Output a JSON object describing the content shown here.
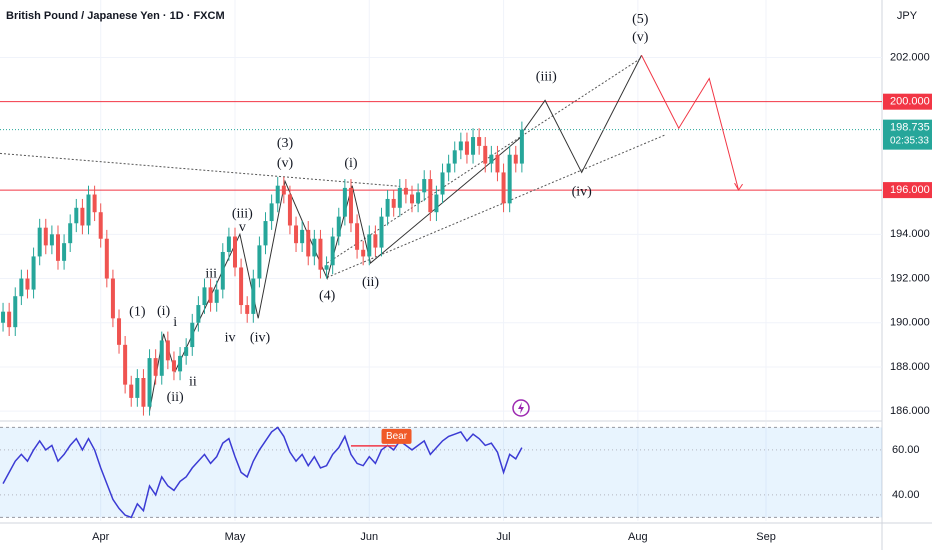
{
  "chart_data": {
    "type": "candlestick",
    "title": "British Pound / Japanese Yen · 1D · FXCM",
    "currency": "JPY",
    "xlim": [
      -0.5,
      144
    ],
    "xticks": [
      {
        "value": 16,
        "label": "Apr"
      },
      {
        "value": 38,
        "label": "May"
      },
      {
        "value": 60,
        "label": "Jun"
      },
      {
        "value": 82,
        "label": "Jul"
      },
      {
        "value": 104,
        "label": "Aug"
      },
      {
        "value": 125,
        "label": "Sep"
      }
    ],
    "ylim": [
      185.6,
      204.6
    ],
    "yticks": [
      {
        "value": 186,
        "label": "186.000"
      },
      {
        "value": 188,
        "label": "188.000"
      },
      {
        "value": 190,
        "label": "190.000"
      },
      {
        "value": 192,
        "label": "192.000"
      },
      {
        "value": 194,
        "label": "194.000"
      },
      {
        "value": 202,
        "label": "202.000"
      }
    ],
    "grid": true,
    "color_up": "#26a69a",
    "color_down": "#ef5350",
    "open": [
      190.0,
      190.5,
      189.8,
      191.2,
      192.0,
      191.5,
      193.0,
      194.3,
      193.5,
      194.0,
      192.8,
      193.6,
      194.5,
      195.2,
      194.4,
      195.8,
      195.0,
      193.8,
      192.0,
      190.2,
      189.0,
      187.2,
      186.6,
      187.5,
      186.2,
      188.4,
      187.6,
      189.2,
      188.3,
      187.8,
      188.5,
      188.9,
      190.0,
      190.8,
      191.6,
      190.9,
      191.5,
      193.2,
      193.9,
      192.5,
      190.8,
      190.4,
      192.0,
      193.5,
      194.6,
      195.4,
      196.2,
      195.8,
      194.4,
      193.6,
      194.2,
      193.0,
      193.8,
      192.4,
      192.6,
      193.9,
      194.8,
      196.1,
      194.5,
      193.3,
      193.0,
      194.0,
      193.4,
      194.8,
      195.6,
      195.2,
      196.1,
      195.8,
      195.4,
      195.9,
      196.5,
      195.0,
      195.8,
      196.8,
      197.2,
      197.8,
      198.2,
      197.6,
      198.4,
      198.0,
      197.2,
      197.6,
      196.8,
      195.4,
      197.6,
      197.2
    ],
    "high": [
      190.9,
      190.9,
      191.6,
      192.4,
      192.4,
      193.4,
      194.7,
      194.7,
      194.4,
      194.4,
      194.0,
      194.9,
      195.6,
      195.6,
      196.2,
      196.2,
      195.4,
      194.2,
      192.4,
      190.6,
      189.4,
      187.6,
      187.9,
      187.9,
      188.8,
      188.8,
      189.6,
      189.6,
      188.7,
      188.9,
      189.3,
      190.4,
      191.2,
      192.0,
      192.0,
      191.9,
      193.6,
      194.3,
      194.3,
      192.9,
      191.2,
      192.4,
      193.9,
      195.0,
      195.8,
      196.6,
      196.6,
      196.2,
      194.8,
      194.6,
      194.6,
      194.2,
      194.2,
      193.0,
      194.3,
      195.2,
      196.5,
      196.5,
      194.9,
      193.7,
      194.4,
      194.4,
      195.2,
      196.0,
      196.0,
      196.5,
      196.5,
      196.2,
      196.3,
      196.9,
      196.9,
      196.2,
      197.2,
      197.6,
      198.2,
      198.6,
      198.6,
      198.8,
      198.8,
      198.4,
      198.0,
      198.0,
      197.2,
      198.0,
      198.0,
      199.1
    ],
    "low": [
      189.6,
      189.4,
      189.4,
      190.8,
      191.1,
      191.1,
      192.6,
      193.1,
      193.1,
      192.4,
      192.4,
      193.2,
      194.1,
      194.0,
      194.0,
      194.6,
      193.4,
      191.6,
      189.8,
      188.6,
      186.8,
      186.2,
      186.2,
      185.8,
      185.8,
      187.2,
      187.2,
      187.9,
      187.4,
      187.4,
      188.1,
      188.5,
      189.6,
      190.4,
      190.5,
      190.5,
      191.1,
      192.8,
      192.1,
      190.4,
      190.0,
      190.0,
      191.6,
      193.1,
      194.2,
      195.0,
      195.4,
      194.0,
      193.2,
      193.2,
      192.6,
      192.6,
      192.0,
      192.0,
      192.2,
      193.5,
      194.4,
      194.1,
      192.9,
      192.6,
      192.6,
      193.0,
      193.0,
      194.4,
      194.8,
      194.8,
      195.4,
      195.0,
      195.0,
      195.5,
      194.6,
      194.6,
      195.4,
      196.4,
      196.8,
      197.4,
      197.2,
      197.2,
      197.6,
      196.8,
      196.8,
      196.4,
      195.0,
      195.0,
      196.8,
      196.8
    ],
    "close": [
      190.5,
      189.8,
      191.2,
      192.0,
      191.5,
      193.0,
      194.3,
      193.5,
      194.0,
      192.8,
      193.6,
      194.5,
      195.2,
      194.4,
      195.8,
      195.0,
      193.8,
      192.0,
      190.2,
      189.0,
      187.2,
      186.6,
      187.5,
      186.2,
      188.4,
      187.6,
      189.2,
      188.3,
      187.8,
      188.5,
      188.9,
      190.0,
      190.8,
      191.6,
      190.9,
      191.5,
      193.2,
      193.9,
      192.5,
      190.8,
      190.4,
      192.0,
      193.5,
      194.6,
      195.4,
      196.2,
      195.8,
      194.4,
      193.6,
      194.2,
      193.0,
      193.8,
      192.4,
      192.6,
      193.9,
      194.8,
      196.1,
      194.5,
      193.3,
      193.0,
      194.0,
      193.4,
      194.8,
      195.6,
      195.2,
      196.1,
      195.8,
      195.4,
      195.9,
      196.5,
      195.0,
      195.8,
      196.8,
      197.2,
      197.8,
      198.2,
      197.6,
      198.4,
      198.0,
      197.2,
      197.6,
      196.8,
      195.4,
      197.6,
      197.2,
      198.735
    ],
    "last": {
      "value": 198.735,
      "label": "198.735",
      "countdown": "02:35:33",
      "color": "#26a69a"
    },
    "hlines": [
      {
        "value": 200,
        "label": "200.000",
        "color": "#f23645"
      },
      {
        "value": 196,
        "label": "196.000",
        "color": "#f23645"
      }
    ],
    "annotations": {
      "labels": [
        {
          "text": "(1)",
          "x": 22,
          "y": 190.47
        },
        {
          "text": "(i)",
          "x": 26.3,
          "y": 190.5
        },
        {
          "text": "i",
          "x": 28.2,
          "y": 190.0
        },
        {
          "text": "(ii)",
          "x": 28.2,
          "y": 186.6
        },
        {
          "text": "ii",
          "x": 31.1,
          "y": 187.3
        },
        {
          "text": "iii",
          "x": 34.1,
          "y": 192.2
        },
        {
          "text": "iv",
          "x": 37.2,
          "y": 189.3
        },
        {
          "text": "(iii)",
          "x": 39.2,
          "y": 194.9
        },
        {
          "text": "v",
          "x": 39.2,
          "y": 194.3
        },
        {
          "text": "(iv)",
          "x": 42.1,
          "y": 189.3
        },
        {
          "text": "(3)",
          "x": 46.2,
          "y": 198.1
        },
        {
          "text": "(v)",
          "x": 46.2,
          "y": 197.2
        },
        {
          "text": "(4)",
          "x": 53.1,
          "y": 191.2
        },
        {
          "text": "(i)",
          "x": 57,
          "y": 197.2
        },
        {
          "text": "(ii)",
          "x": 60.2,
          "y": 191.8
        },
        {
          "text": "(iii)",
          "x": 89,
          "y": 201.1
        },
        {
          "text": "(iv)",
          "x": 94.8,
          "y": 195.9
        },
        {
          "text": "(5)",
          "x": 104.4,
          "y": 203.7
        },
        {
          "text": "(v)",
          "x": 104.4,
          "y": 202.9
        }
      ],
      "lines": [
        {
          "color": "#555555",
          "dash": true,
          "points": [
            [
              -0.5,
              197.66
            ],
            [
              65,
              196.17
            ]
          ]
        },
        {
          "color": "#555555",
          "dash": true,
          "points": [
            [
              53.1,
              192.7
            ],
            [
              104.7,
              202.0
            ]
          ]
        },
        {
          "color": "#555555",
          "dash": true,
          "points": [
            [
              53.1,
              192.05
            ],
            [
              108.5,
              198.5
            ]
          ]
        },
        {
          "color": "#333333",
          "dash": false,
          "points": [
            [
              24,
              186.0
            ],
            [
              26.3,
              189.5
            ],
            [
              28.2,
              187.8
            ],
            [
              38.8,
              194.0
            ],
            [
              41.8,
              190.2
            ],
            [
              46.2,
              196.4
            ],
            [
              53.1,
              192.0
            ],
            [
              57.2,
              196.2
            ],
            [
              60.2,
              192.7
            ],
            [
              85.3,
              198.5
            ]
          ]
        },
        {
          "color": "#333333",
          "dash": false,
          "points": [
            [
              85.3,
              198.7
            ],
            [
              88.8,
              200.06
            ],
            [
              94.8,
              196.8
            ],
            [
              104.6,
              202.1
            ]
          ]
        },
        {
          "color": "#f23645",
          "dash": false,
          "points": [
            [
              104.6,
              202.1
            ],
            [
              110.7,
              198.8
            ],
            [
              115.7,
              201.05
            ],
            [
              120.5,
              196.0
            ]
          ]
        }
      ]
    },
    "rsi": {
      "color": "#3b3bd4",
      "values": [
        45,
        50,
        55,
        58,
        55,
        60,
        64,
        60,
        62,
        55,
        58,
        62,
        65,
        60,
        65,
        60,
        52,
        45,
        38,
        34,
        31,
        30,
        36,
        33,
        44,
        40,
        48,
        44,
        42,
        46,
        48,
        52,
        55,
        58,
        54,
        57,
        63,
        65,
        57,
        50,
        48,
        55,
        60,
        64,
        68,
        70,
        66,
        59,
        55,
        58,
        53,
        57,
        52,
        53,
        58,
        61,
        66,
        58,
        54,
        53,
        57,
        54,
        60,
        62,
        60,
        64,
        62,
        60,
        62,
        64,
        58,
        61,
        64,
        66,
        67,
        68,
        64,
        67,
        65,
        62,
        63,
        59,
        50,
        58,
        56,
        61
      ],
      "ylim": [
        28.4,
        72.4
      ],
      "yticks": [
        {
          "value": 40,
          "label": "40.00"
        },
        {
          "value": 60,
          "label": "60.00"
        }
      ],
      "band": [
        30,
        70
      ],
      "signal": {
        "label": "Bear",
        "from": 57,
        "to": 64.3,
        "value": 61.8
      }
    }
  }
}
